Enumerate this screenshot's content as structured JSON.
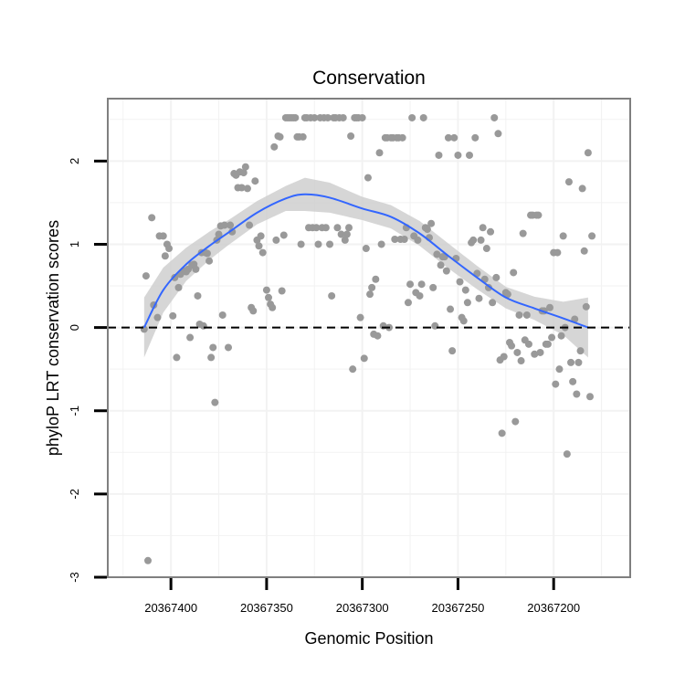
{
  "chart_data": {
    "type": "scatter",
    "title": "Conservation",
    "xlabel": "Genomic Position",
    "ylabel": "phyloP LRT conservation scores",
    "x_reversed": true,
    "xlim": [
      20367160,
      20367433
    ],
    "ylim": [
      -3,
      2.75
    ],
    "x_ticks": [
      20367400,
      20367350,
      20367300,
      20367250,
      20367200
    ],
    "x_tick_labels": [
      "20367400",
      "20367350",
      "20367300",
      "20367250",
      "20367200"
    ],
    "y_ticks": [
      -3,
      -2,
      -1,
      0,
      1,
      2
    ],
    "y_tick_labels": [
      "-3",
      "-2",
      "-1",
      "0",
      "1",
      "2"
    ],
    "grid": true,
    "reference_line": {
      "y": 0,
      "style": "dashed"
    },
    "colors": {
      "points": "#999999",
      "smooth_line": "#3366ff",
      "ribbon": "#cccccc",
      "panel_border": "#7f7f7f",
      "grid": "#f2f2f2"
    },
    "points": [
      [
        20367414,
        -0.02
      ],
      [
        20367413,
        0.62
      ],
      [
        20367412,
        -2.8
      ],
      [
        20367410,
        1.32
      ],
      [
        20367409,
        0.27
      ],
      [
        20367407,
        0.12
      ],
      [
        20367406,
        1.1
      ],
      [
        20367404,
        1.1
      ],
      [
        20367403,
        0.86
      ],
      [
        20367402,
        1.0
      ],
      [
        20367401,
        0.95
      ],
      [
        20367399,
        0.14
      ],
      [
        20367398,
        0.6
      ],
      [
        20367397,
        -0.36
      ],
      [
        20367396,
        0.48
      ],
      [
        20367395,
        0.64
      ],
      [
        20367393,
        0.68
      ],
      [
        20367392,
        0.67
      ],
      [
        20367391,
        0.7
      ],
      [
        20367390,
        -0.12
      ],
      [
        20367389,
        0.75
      ],
      [
        20367388,
        0.76
      ],
      [
        20367387,
        0.7
      ],
      [
        20367386,
        0.38
      ],
      [
        20367385,
        0.04
      ],
      [
        20367384,
        0.9
      ],
      [
        20367383,
        0.02
      ],
      [
        20367382,
        0.9
      ],
      [
        20367381,
        0.89
      ],
      [
        20367380,
        0.8
      ],
      [
        20367379,
        -0.36
      ],
      [
        20367378,
        -0.24
      ],
      [
        20367377,
        -0.9
      ],
      [
        20367376,
        1.05
      ],
      [
        20367375,
        1.12
      ],
      [
        20367374,
        1.22
      ],
      [
        20367373,
        0.15
      ],
      [
        20367372,
        1.23
      ],
      [
        20367370,
        -0.24
      ],
      [
        20367369,
        1.23
      ],
      [
        20367368,
        1.15
      ],
      [
        20367367,
        1.85
      ],
      [
        20367366,
        1.83
      ],
      [
        20367365,
        1.68
      ],
      [
        20367364,
        1.87
      ],
      [
        20367363,
        1.68
      ],
      [
        20367362,
        1.86
      ],
      [
        20367361,
        1.93
      ],
      [
        20367360,
        1.67
      ],
      [
        20367359,
        1.23
      ],
      [
        20367358,
        0.24
      ],
      [
        20367357,
        0.2
      ],
      [
        20367356,
        1.76
      ],
      [
        20367355,
        1.05
      ],
      [
        20367354,
        0.98
      ],
      [
        20367353,
        1.1
      ],
      [
        20367352,
        0.9
      ],
      [
        20367350,
        0.45
      ],
      [
        20367349,
        0.36
      ],
      [
        20367348,
        0.28
      ],
      [
        20367347,
        0.24
      ],
      [
        20367346,
        2.17
      ],
      [
        20367345,
        1.05
      ],
      [
        20367344,
        2.3
      ],
      [
        20367343,
        2.29
      ],
      [
        20367342,
        0.44
      ],
      [
        20367341,
        1.11
      ],
      [
        20367340,
        2.52
      ],
      [
        20367339,
        2.52
      ],
      [
        20367338,
        2.52
      ],
      [
        20367337,
        2.52
      ],
      [
        20367336,
        2.52
      ],
      [
        20367335,
        2.52
      ],
      [
        20367334,
        2.29
      ],
      [
        20367333,
        2.29
      ],
      [
        20367332,
        1.0
      ],
      [
        20367331,
        2.29
      ],
      [
        20367330,
        2.52
      ],
      [
        20367329,
        2.52
      ],
      [
        20367328,
        1.2
      ],
      [
        20367327,
        2.52
      ],
      [
        20367326,
        1.2
      ],
      [
        20367325,
        2.52
      ],
      [
        20367324,
        1.2
      ],
      [
        20367323,
        1.0
      ],
      [
        20367322,
        2.52
      ],
      [
        20367321,
        1.2
      ],
      [
        20367320,
        2.52
      ],
      [
        20367319,
        1.2
      ],
      [
        20367318,
        2.52
      ],
      [
        20367317,
        1.0
      ],
      [
        20367316,
        0.38
      ],
      [
        20367315,
        2.52
      ],
      [
        20367314,
        2.52
      ],
      [
        20367313,
        1.2
      ],
      [
        20367312,
        2.52
      ],
      [
        20367311,
        1.12
      ],
      [
        20367310,
        2.52
      ],
      [
        20367309,
        1.05
      ],
      [
        20367308,
        1.12
      ],
      [
        20367307,
        1.2
      ],
      [
        20367306,
        2.3
      ],
      [
        20367305,
        -0.5
      ],
      [
        20367304,
        2.52
      ],
      [
        20367303,
        2.52
      ],
      [
        20367302,
        2.52
      ],
      [
        20367301,
        0.12
      ],
      [
        20367300,
        2.52
      ],
      [
        20367299,
        -0.37
      ],
      [
        20367298,
        0.95
      ],
      [
        20367297,
        1.8
      ],
      [
        20367296,
        0.4
      ],
      [
        20367295,
        0.48
      ],
      [
        20367294,
        -0.08
      ],
      [
        20367293,
        0.58
      ],
      [
        20367292,
        -0.1
      ],
      [
        20367291,
        2.1
      ],
      [
        20367290,
        1.0
      ],
      [
        20367289,
        0.02
      ],
      [
        20367288,
        2.28
      ],
      [
        20367287,
        2.28
      ],
      [
        20367286,
        0.0
      ],
      [
        20367285,
        2.28
      ],
      [
        20367284,
        2.28
      ],
      [
        20367283,
        1.06
      ],
      [
        20367282,
        2.28
      ],
      [
        20367281,
        2.28
      ],
      [
        20367280,
        1.06
      ],
      [
        20367279,
        2.28
      ],
      [
        20367278,
        1.06
      ],
      [
        20367277,
        1.2
      ],
      [
        20367276,
        0.3
      ],
      [
        20367275,
        0.52
      ],
      [
        20367274,
        2.52
      ],
      [
        20367273,
        1.1
      ],
      [
        20367272,
        0.42
      ],
      [
        20367271,
        1.05
      ],
      [
        20367270,
        0.38
      ],
      [
        20367269,
        0.52
      ],
      [
        20367268,
        2.52
      ],
      [
        20367267,
        1.2
      ],
      [
        20367266,
        1.18
      ],
      [
        20367265,
        1.08
      ],
      [
        20367264,
        1.25
      ],
      [
        20367263,
        0.48
      ],
      [
        20367262,
        0.02
      ],
      [
        20367261,
        0.88
      ],
      [
        20367260,
        2.07
      ],
      [
        20367259,
        0.75
      ],
      [
        20367258,
        0.85
      ],
      [
        20367257,
        0.85
      ],
      [
        20367256,
        0.68
      ],
      [
        20367255,
        2.28
      ],
      [
        20367254,
        0.22
      ],
      [
        20367253,
        -0.28
      ],
      [
        20367252,
        2.28
      ],
      [
        20367251,
        0.83
      ],
      [
        20367250,
        2.07
      ],
      [
        20367249,
        0.55
      ],
      [
        20367248,
        0.12
      ],
      [
        20367247,
        0.08
      ],
      [
        20367246,
        0.45
      ],
      [
        20367245,
        0.3
      ],
      [
        20367244,
        2.07
      ],
      [
        20367243,
        1.02
      ],
      [
        20367242,
        1.05
      ],
      [
        20367241,
        2.28
      ],
      [
        20367240,
        0.65
      ],
      [
        20367239,
        0.35
      ],
      [
        20367238,
        1.05
      ],
      [
        20367237,
        1.2
      ],
      [
        20367236,
        0.58
      ],
      [
        20367235,
        0.95
      ],
      [
        20367234,
        0.48
      ],
      [
        20367233,
        1.15
      ],
      [
        20367232,
        0.3
      ],
      [
        20367231,
        2.52
      ],
      [
        20367230,
        0.6
      ],
      [
        20367229,
        2.33
      ],
      [
        20367228,
        -0.39
      ],
      [
        20367227,
        -1.27
      ],
      [
        20367226,
        -0.35
      ],
      [
        20367225,
        0.42
      ],
      [
        20367224,
        0.4
      ],
      [
        20367223,
        -0.18
      ],
      [
        20367222,
        -0.22
      ],
      [
        20367221,
        0.66
      ],
      [
        20367220,
        -1.13
      ],
      [
        20367219,
        -0.3
      ],
      [
        20367218,
        0.15
      ],
      [
        20367217,
        -0.4
      ],
      [
        20367216,
        1.13
      ],
      [
        20367215,
        -0.15
      ],
      [
        20367214,
        0.15
      ],
      [
        20367213,
        -0.2
      ],
      [
        20367212,
        1.35
      ],
      [
        20367211,
        1.35
      ],
      [
        20367210,
        -0.32
      ],
      [
        20367209,
        1.35
      ],
      [
        20367208,
        1.35
      ],
      [
        20367207,
        -0.3
      ],
      [
        20367206,
        0.2
      ],
      [
        20367205,
        0.2
      ],
      [
        20367204,
        -0.2
      ],
      [
        20367203,
        -0.2
      ],
      [
        20367202,
        0.24
      ],
      [
        20367201,
        -0.12
      ],
      [
        20367200,
        0.9
      ],
      [
        20367199,
        -0.68
      ],
      [
        20367198,
        0.9
      ],
      [
        20367197,
        -0.5
      ],
      [
        20367196,
        -0.1
      ],
      [
        20367195,
        1.1
      ],
      [
        20367194,
        0.0
      ],
      [
        20367193,
        -1.52
      ],
      [
        20367192,
        1.75
      ],
      [
        20367191,
        -0.42
      ],
      [
        20367190,
        -0.65
      ],
      [
        20367189,
        0.1
      ],
      [
        20367188,
        -0.8
      ],
      [
        20367187,
        -0.42
      ],
      [
        20367186,
        -0.28
      ],
      [
        20367185,
        1.67
      ],
      [
        20367184,
        0.92
      ],
      [
        20367183,
        0.25
      ],
      [
        20367182,
        2.1
      ],
      [
        20367181,
        -0.83
      ],
      [
        20367180,
        1.1
      ]
    ],
    "smooth": [
      [
        20367414,
        0.0
      ],
      [
        20367404,
        0.45
      ],
      [
        20367392,
        0.76
      ],
      [
        20367380,
        0.98
      ],
      [
        20367370,
        1.14
      ],
      [
        20367355,
        1.38
      ],
      [
        20367340,
        1.55
      ],
      [
        20367330,
        1.6
      ],
      [
        20367317,
        1.56
      ],
      [
        20367300,
        1.43
      ],
      [
        20367285,
        1.33
      ],
      [
        20367270,
        1.13
      ],
      [
        20367255,
        0.86
      ],
      [
        20367240,
        0.6
      ],
      [
        20367225,
        0.36
      ],
      [
        20367210,
        0.23
      ],
      [
        20367195,
        0.11
      ],
      [
        20367182,
        0.0
      ]
    ],
    "ribbon_halfwidth": [
      0.36,
      0.27,
      0.2,
      0.17,
      0.15,
      0.14,
      0.15,
      0.2,
      0.18,
      0.14,
      0.14,
      0.15,
      0.15,
      0.14,
      0.13,
      0.14,
      0.2,
      0.36
    ]
  }
}
